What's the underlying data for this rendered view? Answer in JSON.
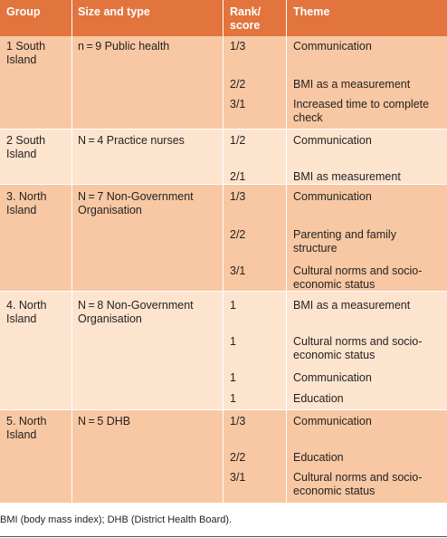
{
  "colors": {
    "header": "#e2743e",
    "dark_band": "#f7c8a3",
    "light_band": "#fde4cf"
  },
  "headers": [
    "Group",
    "Size and type",
    "Rank/\nscore",
    "Theme"
  ],
  "groups": [
    {
      "group": "1 South Island",
      "size": "n = 9 Public health",
      "entries": [
        {
          "rank": "1/3",
          "theme": "Communication"
        },
        {
          "rank": "2/2",
          "theme": "BMI as a measurement"
        },
        {
          "rank": "3/1",
          "theme": "Increased time to complete check"
        }
      ]
    },
    {
      "group": "2 South Island",
      "size": "N = 4 Practice nurses",
      "entries": [
        {
          "rank": "1/2",
          "theme": "Communication"
        },
        {
          "rank": "2/1",
          "theme": "BMI as measurement"
        }
      ]
    },
    {
      "group": "3. North Island",
      "size": "N = 7 Non-Government Organisation",
      "entries": [
        {
          "rank": "1/3",
          "theme": "Communication"
        },
        {
          "rank": "2/2",
          "theme": "Parenting and family structure"
        },
        {
          "rank": "3/1",
          "theme": "Cultural norms and socio-economic status"
        }
      ]
    },
    {
      "group": "4. North Island",
      "size": "N = 8 Non-Government Organisation",
      "entries": [
        {
          "rank": "1",
          "theme": "BMI as a measurement"
        },
        {
          "rank": "1",
          "theme": "Cultural norms and socio-economic status"
        },
        {
          "rank": "1",
          "theme": "Communication"
        },
        {
          "rank": "1",
          "theme": "Education"
        }
      ]
    },
    {
      "group": "5. North Island",
      "size": "N = 5 DHB",
      "entries": [
        {
          "rank": "1/3",
          "theme": "Communication"
        },
        {
          "rank": "2/2",
          "theme": "Education"
        },
        {
          "rank": "3/1",
          "theme": "Cultural norms and socio-economic status"
        }
      ]
    }
  ],
  "footnote": "BMI (body mass index); DHB (District Health Board)."
}
